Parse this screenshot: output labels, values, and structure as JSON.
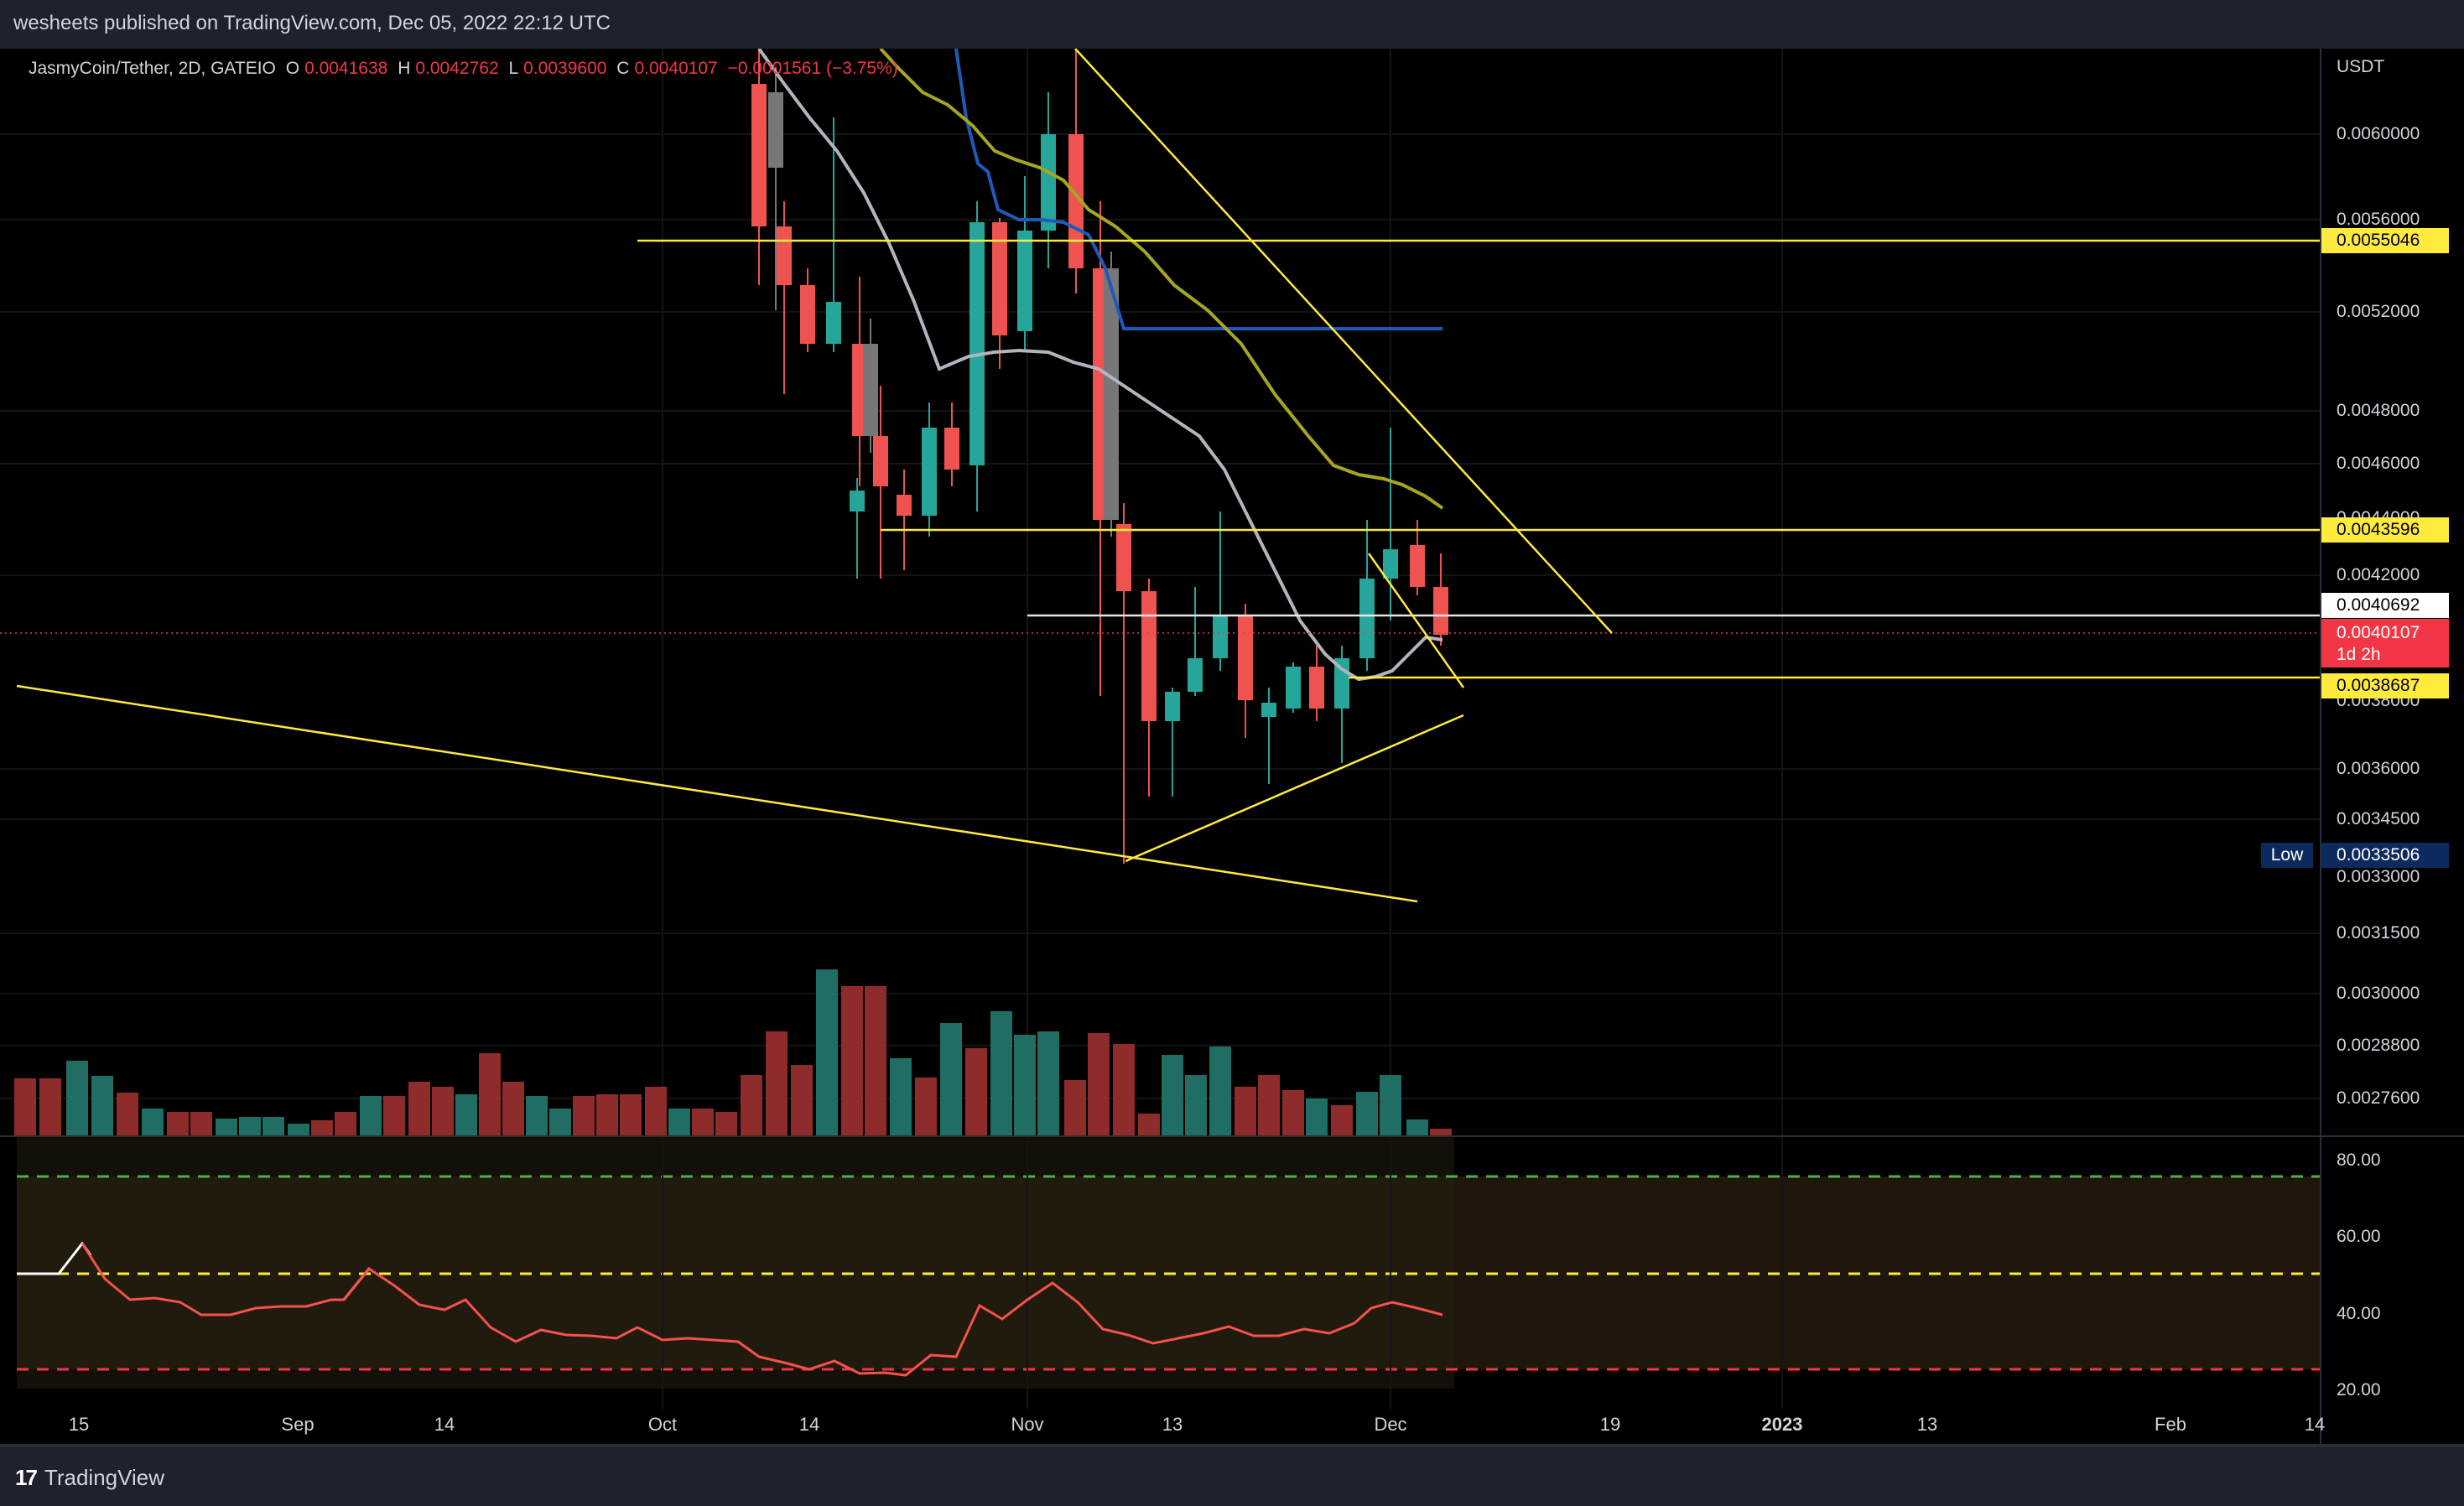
{
  "header": {
    "text": "wesheets published on TradingView.com, Dec 05, 2022 22:12 UTC"
  },
  "legend": {
    "symbol": "JasmyCoin/Tether, 2D, GATEIO",
    "o_key": "O",
    "o_val": "0.0041638",
    "h_key": "H",
    "h_val": "0.0042762",
    "l_key": "L",
    "l_val": "0.0039600",
    "c_key": "C",
    "c_val": "0.0040107",
    "change": "−0.0001561 (−3.75%)"
  },
  "price_axis": {
    "currency": "USDT",
    "labels": [
      "0.0060000",
      "0.0056000",
      "0.0052000",
      "0.0048000",
      "0.0046000",
      "0.0044000",
      "0.0042000",
      "0.0038000",
      "0.0036000",
      "0.0034500",
      "0.0033000",
      "0.0031500",
      "0.0030000",
      "0.0028800",
      "0.0027600"
    ]
  },
  "price_tags": {
    "upper_resistance": "0.0055046",
    "resistance": "0.0043596",
    "white_level": "0.0040692",
    "last_price": "0.0040107",
    "countdown": "1d 2h",
    "support": "0.0038687",
    "low_label": "Low",
    "low_value": "0.0033506"
  },
  "time_axis": {
    "labels": [
      "15",
      "Sep",
      "14",
      "Oct",
      "14",
      "Nov",
      "13",
      "Dec",
      "19",
      "2023",
      "13",
      "Feb",
      "14"
    ]
  },
  "rsi_axis": {
    "labels": [
      "80.00",
      "60.00",
      "40.00",
      "20.00"
    ]
  },
  "footer": {
    "brand_mark": "17",
    "brand_name": "TradingView"
  },
  "colors": {
    "background": "#000000",
    "bull": "#26a69a",
    "bear": "#ef5350",
    "drawing_yellow": "#ffeb3b",
    "ma_gray": "#b2b5be",
    "ma_olive": "#a6a61f",
    "ma_blue": "#2962ff",
    "rsi_line": "#f6514b"
  }
}
